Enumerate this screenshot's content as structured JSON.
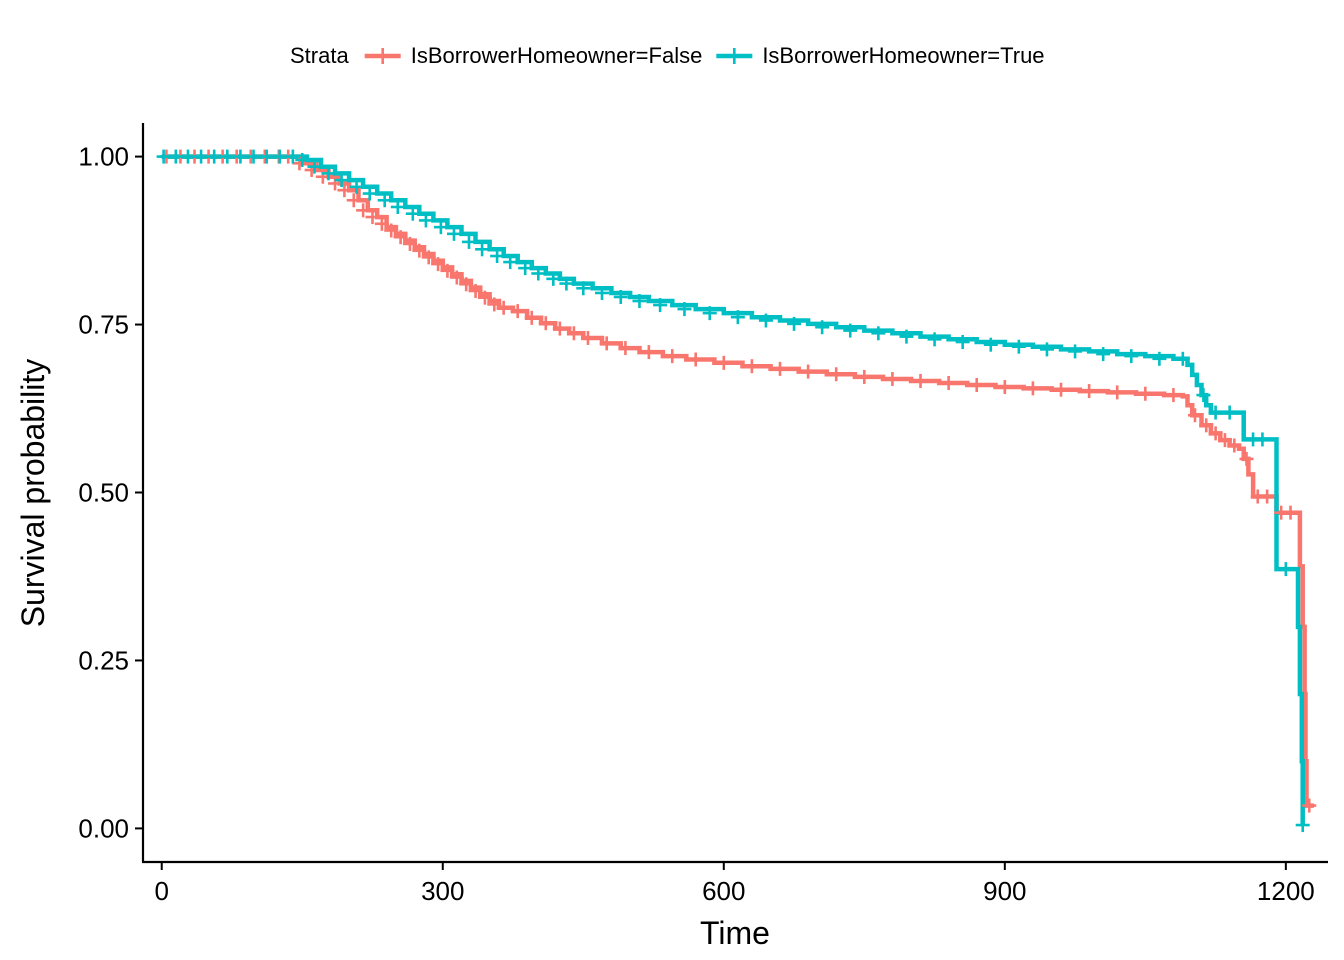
{
  "chart_data": {
    "type": "line",
    "chart_kind": "kaplan-meier survival curve",
    "title": "",
    "xlabel": "Time",
    "ylabel": "Survival probability",
    "xlim": [
      -20,
      1245
    ],
    "ylim": [
      -0.05,
      1.05
    ],
    "xticks": [
      0,
      300,
      600,
      900,
      1200
    ],
    "xtick_labels": [
      "0",
      "300",
      "600",
      "900",
      "1200"
    ],
    "yticks": [
      0,
      0.25,
      0.5,
      0.75,
      1.0
    ],
    "ytick_labels": [
      "0.00",
      "0.25",
      "0.50",
      "0.75",
      "1.00"
    ],
    "grid": false,
    "legend": {
      "position": "top",
      "title": "Strata"
    },
    "series": [
      {
        "name": "IsBorrowerHomeowner=False",
        "color": "#F8766D",
        "steps": [
          [
            0,
            1.0
          ],
          [
            140,
            1.0
          ],
          [
            150,
            0.99
          ],
          [
            165,
            0.98
          ],
          [
            178,
            0.97
          ],
          [
            190,
            0.96
          ],
          [
            200,
            0.95
          ],
          [
            210,
            0.935
          ],
          [
            220,
            0.92
          ],
          [
            230,
            0.91
          ],
          [
            240,
            0.895
          ],
          [
            250,
            0.885
          ],
          [
            260,
            0.875
          ],
          [
            270,
            0.865
          ],
          [
            280,
            0.855
          ],
          [
            290,
            0.845
          ],
          [
            300,
            0.835
          ],
          [
            310,
            0.825
          ],
          [
            320,
            0.815
          ],
          [
            330,
            0.805
          ],
          [
            340,
            0.795
          ],
          [
            350,
            0.785
          ],
          [
            360,
            0.775
          ],
          [
            375,
            0.77
          ],
          [
            390,
            0.76
          ],
          [
            405,
            0.752
          ],
          [
            420,
            0.744
          ],
          [
            435,
            0.737
          ],
          [
            450,
            0.73
          ],
          [
            470,
            0.722
          ],
          [
            490,
            0.715
          ],
          [
            510,
            0.709
          ],
          [
            535,
            0.703
          ],
          [
            560,
            0.698
          ],
          [
            590,
            0.693
          ],
          [
            620,
            0.688
          ],
          [
            650,
            0.684
          ],
          [
            680,
            0.68
          ],
          [
            710,
            0.676
          ],
          [
            740,
            0.672
          ],
          [
            770,
            0.669
          ],
          [
            800,
            0.666
          ],
          [
            830,
            0.663
          ],
          [
            860,
            0.66
          ],
          [
            890,
            0.657
          ],
          [
            920,
            0.655
          ],
          [
            950,
            0.653
          ],
          [
            980,
            0.651
          ],
          [
            1010,
            0.649
          ],
          [
            1040,
            0.647
          ],
          [
            1070,
            0.645
          ],
          [
            1090,
            0.643
          ],
          [
            1095,
            0.63
          ],
          [
            1100,
            0.615
          ],
          [
            1110,
            0.6
          ],
          [
            1120,
            0.588
          ],
          [
            1130,
            0.578
          ],
          [
            1140,
            0.57
          ],
          [
            1150,
            0.565
          ],
          [
            1155,
            0.55
          ],
          [
            1160,
            0.527
          ],
          [
            1165,
            0.494
          ],
          [
            1190,
            0.47
          ],
          [
            1215,
            0.39
          ],
          [
            1218,
            0.3
          ],
          [
            1220,
            0.2
          ],
          [
            1221,
            0.1
          ],
          [
            1222,
            0.034
          ],
          [
            1230,
            0.034
          ]
        ],
        "censor": [
          [
            5,
            1.0
          ],
          [
            20,
            1.0
          ],
          [
            35,
            1.0
          ],
          [
            50,
            1.0
          ],
          [
            65,
            1.0
          ],
          [
            80,
            1.0
          ],
          [
            95,
            1.0
          ],
          [
            110,
            1.0
          ],
          [
            125,
            1.0
          ],
          [
            135,
            1.0
          ],
          [
            147,
            0.99
          ],
          [
            160,
            0.98
          ],
          [
            172,
            0.97
          ],
          [
            185,
            0.96
          ],
          [
            195,
            0.95
          ],
          [
            205,
            0.935
          ],
          [
            215,
            0.92
          ],
          [
            225,
            0.91
          ],
          [
            235,
            0.9
          ],
          [
            245,
            0.89
          ],
          [
            255,
            0.88
          ],
          [
            265,
            0.87
          ],
          [
            275,
            0.86
          ],
          [
            285,
            0.85
          ],
          [
            295,
            0.84
          ],
          [
            305,
            0.83
          ],
          [
            315,
            0.82
          ],
          [
            325,
            0.81
          ],
          [
            335,
            0.8
          ],
          [
            345,
            0.79
          ],
          [
            355,
            0.78
          ],
          [
            365,
            0.775
          ],
          [
            380,
            0.77
          ],
          [
            395,
            0.76
          ],
          [
            410,
            0.752
          ],
          [
            425,
            0.744
          ],
          [
            440,
            0.737
          ],
          [
            455,
            0.73
          ],
          [
            475,
            0.722
          ],
          [
            495,
            0.715
          ],
          [
            520,
            0.709
          ],
          [
            545,
            0.703
          ],
          [
            570,
            0.698
          ],
          [
            600,
            0.693
          ],
          [
            630,
            0.688
          ],
          [
            660,
            0.684
          ],
          [
            690,
            0.68
          ],
          [
            720,
            0.676
          ],
          [
            750,
            0.672
          ],
          [
            780,
            0.669
          ],
          [
            810,
            0.666
          ],
          [
            840,
            0.663
          ],
          [
            870,
            0.66
          ],
          [
            900,
            0.657
          ],
          [
            930,
            0.655
          ],
          [
            960,
            0.653
          ],
          [
            990,
            0.651
          ],
          [
            1020,
            0.649
          ],
          [
            1050,
            0.647
          ],
          [
            1080,
            0.645
          ],
          [
            1103,
            0.615
          ],
          [
            1115,
            0.6
          ],
          [
            1125,
            0.588
          ],
          [
            1135,
            0.578
          ],
          [
            1145,
            0.57
          ],
          [
            1158,
            0.55
          ],
          [
            1170,
            0.494
          ],
          [
            1180,
            0.494
          ],
          [
            1195,
            0.47
          ],
          [
            1205,
            0.47
          ],
          [
            1225,
            0.034
          ]
        ]
      },
      {
        "name": "IsBorrowerHomeowner=True",
        "color": "#00BFC4",
        "steps": [
          [
            0,
            1.0
          ],
          [
            145,
            1.0
          ],
          [
            155,
            0.995
          ],
          [
            170,
            0.985
          ],
          [
            185,
            0.975
          ],
          [
            200,
            0.965
          ],
          [
            215,
            0.955
          ],
          [
            230,
            0.945
          ],
          [
            245,
            0.935
          ],
          [
            260,
            0.925
          ],
          [
            275,
            0.915
          ],
          [
            290,
            0.905
          ],
          [
            305,
            0.895
          ],
          [
            320,
            0.885
          ],
          [
            335,
            0.873
          ],
          [
            350,
            0.862
          ],
          [
            365,
            0.852
          ],
          [
            380,
            0.843
          ],
          [
            395,
            0.834
          ],
          [
            410,
            0.826
          ],
          [
            425,
            0.818
          ],
          [
            440,
            0.811
          ],
          [
            460,
            0.804
          ],
          [
            480,
            0.797
          ],
          [
            500,
            0.791
          ],
          [
            520,
            0.785
          ],
          [
            545,
            0.779
          ],
          [
            570,
            0.773
          ],
          [
            600,
            0.767
          ],
          [
            630,
            0.761
          ],
          [
            660,
            0.756
          ],
          [
            690,
            0.751
          ],
          [
            720,
            0.746
          ],
          [
            750,
            0.741
          ],
          [
            780,
            0.737
          ],
          [
            810,
            0.732
          ],
          [
            840,
            0.728
          ],
          [
            870,
            0.724
          ],
          [
            900,
            0.72
          ],
          [
            930,
            0.717
          ],
          [
            960,
            0.713
          ],
          [
            990,
            0.71
          ],
          [
            1020,
            0.706
          ],
          [
            1050,
            0.703
          ],
          [
            1080,
            0.699
          ],
          [
            1095,
            0.69
          ],
          [
            1100,
            0.675
          ],
          [
            1105,
            0.66
          ],
          [
            1110,
            0.645
          ],
          [
            1115,
            0.63
          ],
          [
            1120,
            0.619
          ],
          [
            1155,
            0.579
          ],
          [
            1190,
            0.386
          ],
          [
            1210,
            0.386
          ],
          [
            1213,
            0.3
          ],
          [
            1215,
            0.2
          ],
          [
            1217,
            0.1
          ],
          [
            1218,
            0.005
          ]
        ],
        "censor": [
          [
            2,
            1.0
          ],
          [
            15,
            1.0
          ],
          [
            28,
            1.0
          ],
          [
            42,
            1.0
          ],
          [
            56,
            1.0
          ],
          [
            70,
            1.0
          ],
          [
            84,
            1.0
          ],
          [
            98,
            1.0
          ],
          [
            112,
            1.0
          ],
          [
            126,
            1.0
          ],
          [
            140,
            1.0
          ],
          [
            150,
            0.995
          ],
          [
            163,
            0.985
          ],
          [
            178,
            0.975
          ],
          [
            192,
            0.965
          ],
          [
            208,
            0.955
          ],
          [
            222,
            0.945
          ],
          [
            238,
            0.935
          ],
          [
            252,
            0.925
          ],
          [
            268,
            0.915
          ],
          [
            282,
            0.905
          ],
          [
            298,
            0.895
          ],
          [
            312,
            0.885
          ],
          [
            328,
            0.873
          ],
          [
            342,
            0.862
          ],
          [
            358,
            0.852
          ],
          [
            372,
            0.843
          ],
          [
            388,
            0.834
          ],
          [
            402,
            0.826
          ],
          [
            418,
            0.818
          ],
          [
            432,
            0.811
          ],
          [
            450,
            0.804
          ],
          [
            470,
            0.797
          ],
          [
            490,
            0.791
          ],
          [
            510,
            0.785
          ],
          [
            532,
            0.779
          ],
          [
            558,
            0.773
          ],
          [
            585,
            0.767
          ],
          [
            615,
            0.761
          ],
          [
            645,
            0.756
          ],
          [
            675,
            0.751
          ],
          [
            705,
            0.746
          ],
          [
            735,
            0.741
          ],
          [
            765,
            0.737
          ],
          [
            795,
            0.732
          ],
          [
            825,
            0.728
          ],
          [
            855,
            0.724
          ],
          [
            885,
            0.72
          ],
          [
            915,
            0.717
          ],
          [
            945,
            0.713
          ],
          [
            975,
            0.71
          ],
          [
            1005,
            0.706
          ],
          [
            1035,
            0.703
          ],
          [
            1065,
            0.699
          ],
          [
            1090,
            0.699
          ],
          [
            1112,
            0.645
          ],
          [
            1125,
            0.619
          ],
          [
            1140,
            0.619
          ],
          [
            1165,
            0.579
          ],
          [
            1175,
            0.579
          ],
          [
            1200,
            0.386
          ],
          [
            1218,
            0.005
          ]
        ]
      }
    ]
  }
}
